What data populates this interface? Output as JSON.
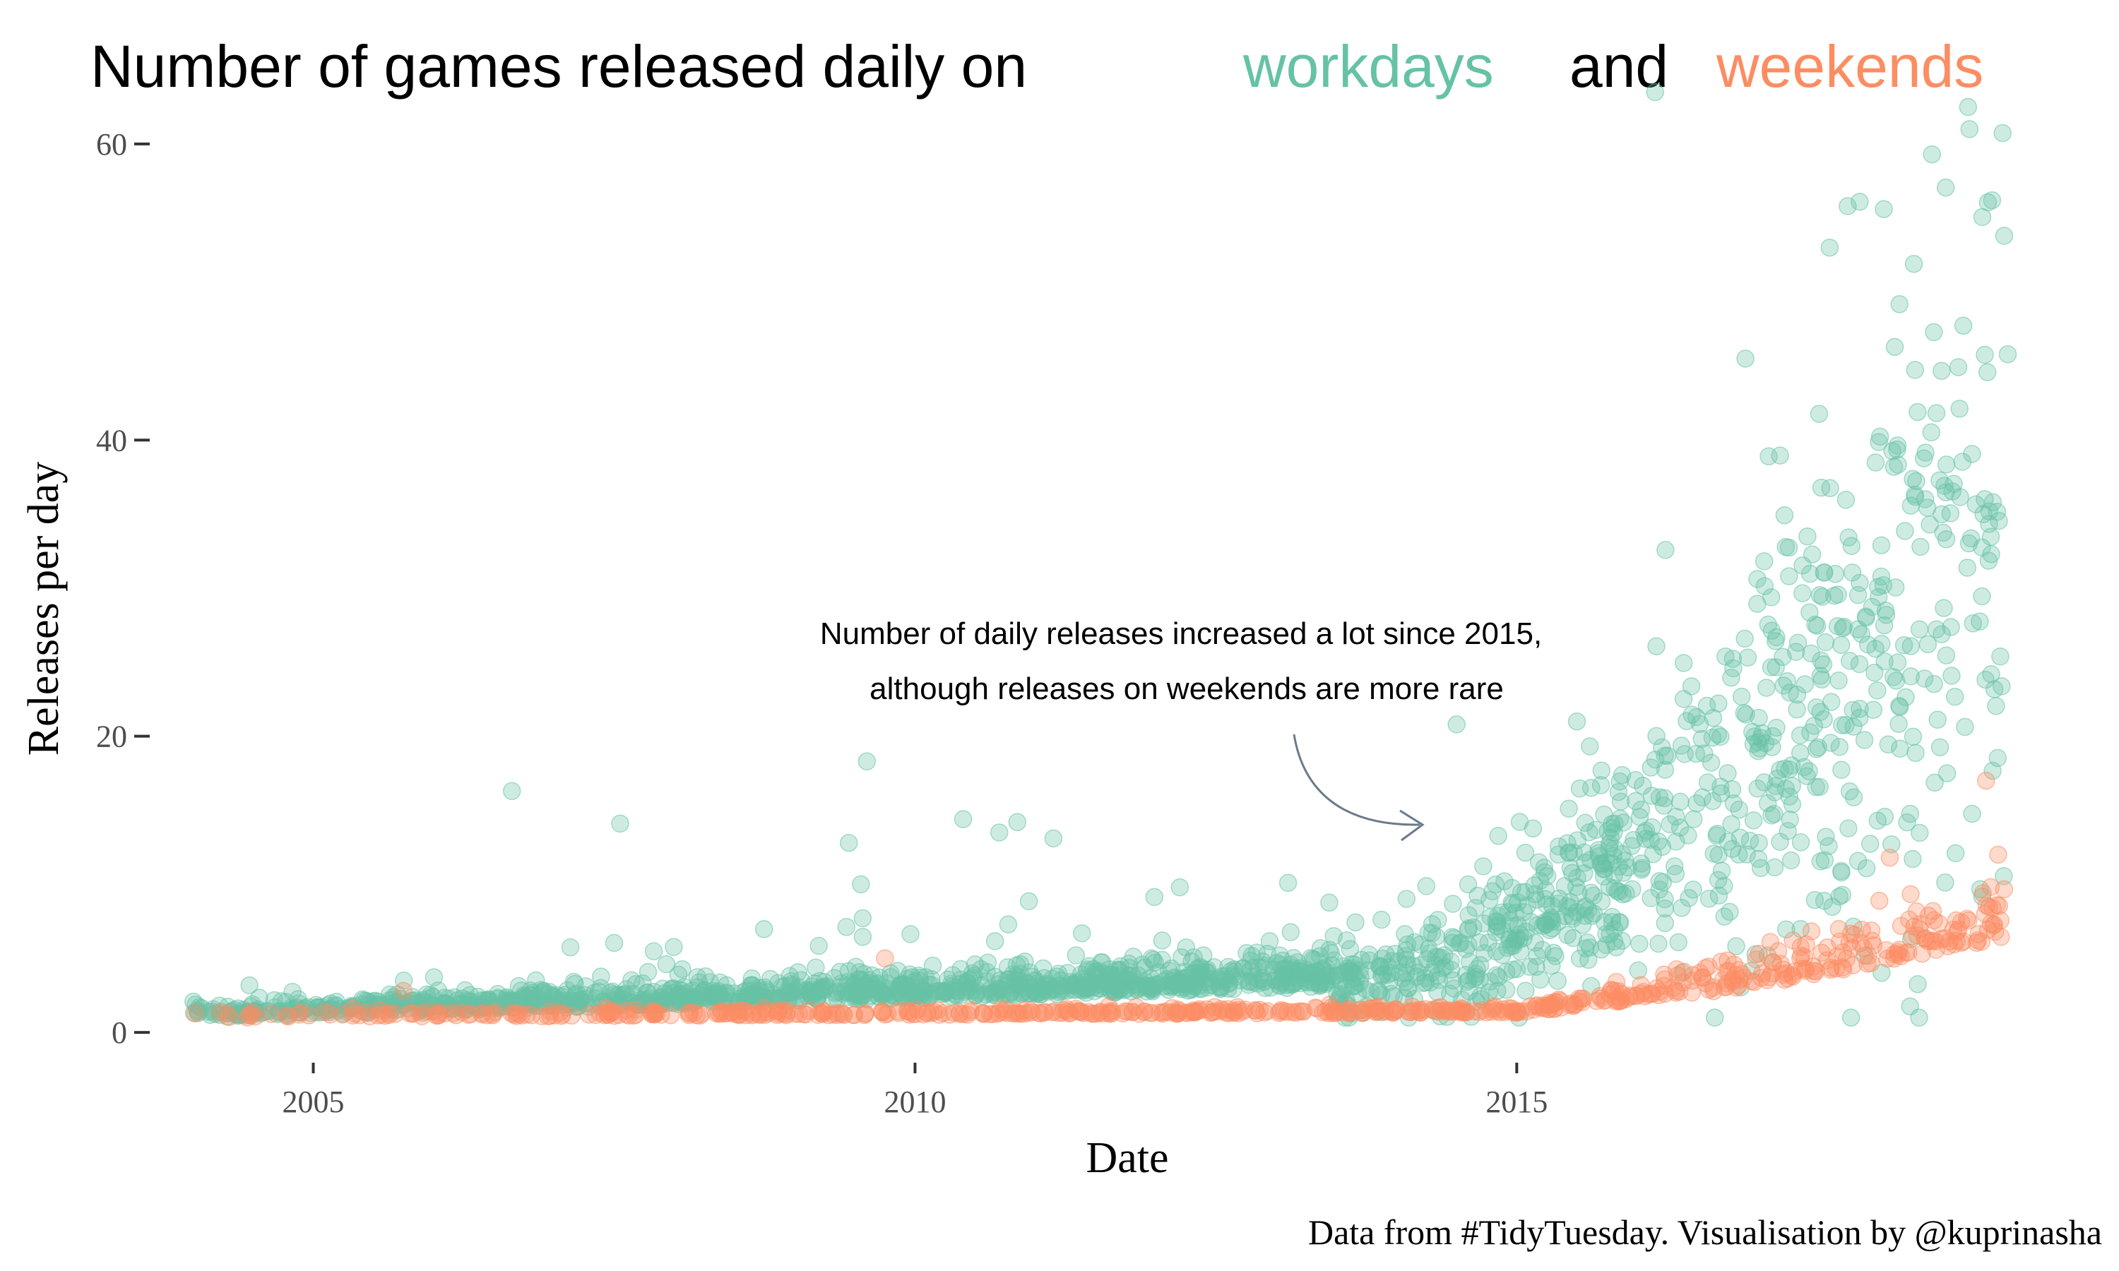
{
  "chart_data": {
    "type": "scatter",
    "title": {
      "prefix": "Number of games released daily on",
      "workdays_word": "workdays",
      "conjunction": "and",
      "weekends_word": "weekends"
    },
    "xlabel": "Date",
    "ylabel": "Releases per day",
    "caption": "Data from #TidyTuesday. Visualisation by @kuprinasha",
    "annotation": {
      "line1": "Number of daily releases increased a lot since 2015,",
      "line2": "although releases on weekends are more rare"
    },
    "xlim": [
      2003.6,
      2019.3
    ],
    "ylim": [
      -3,
      64
    ],
    "x_ticks": [
      2005,
      2010,
      2015
    ],
    "x_tick_labels": [
      "2005",
      "2010",
      "2015"
    ],
    "y_ticks": [
      0,
      20,
      40,
      60
    ],
    "y_tick_labels": [
      "0",
      "20",
      "40",
      "60"
    ],
    "grid": false,
    "legend": "encoded in title colors",
    "colors": {
      "workdays": "#66c2a5",
      "weekends": "#fc8d62",
      "annotation_arrow": "#6a7a8c"
    },
    "series": [
      {
        "name": "workdays",
        "highlighted_points": [
          {
            "x": 2006.65,
            "y": 16.3
          },
          {
            "x": 2007.55,
            "y": 14.1
          },
          {
            "x": 2009.45,
            "y": 12.8
          },
          {
            "x": 2009.6,
            "y": 18.3
          },
          {
            "x": 2009.55,
            "y": 10.0
          },
          {
            "x": 2010.4,
            "y": 14.4
          },
          {
            "x": 2010.7,
            "y": 13.5
          },
          {
            "x": 2010.85,
            "y": 14.2
          },
          {
            "x": 2011.15,
            "y": 13.1
          },
          {
            "x": 2012.2,
            "y": 9.8
          },
          {
            "x": 2013.1,
            "y": 10.1
          },
          {
            "x": 2014.5,
            "y": 20.8
          },
          {
            "x": 2015.5,
            "y": 21.0
          },
          {
            "x": 2016.15,
            "y": 63.5
          },
          {
            "x": 2016.9,
            "y": 45.5
          },
          {
            "x": 2017.6,
            "y": 53.0
          },
          {
            "x": 2017.75,
            "y": 55.8
          },
          {
            "x": 2017.85,
            "y": 56.1
          },
          {
            "x": 2018.05,
            "y": 55.6
          },
          {
            "x": 2018.3,
            "y": 51.9
          },
          {
            "x": 2018.45,
            "y": 59.3
          },
          {
            "x": 2018.75,
            "y": 62.5
          },
          {
            "x": 2018.95,
            "y": 56.2
          },
          {
            "x": 2019.05,
            "y": 53.8
          },
          {
            "x": 2019.08,
            "y": 45.8
          }
        ]
      },
      {
        "name": "weekends",
        "highlighted_points": [
          {
            "x": 2005.75,
            "y": 2.8
          },
          {
            "x": 2009.75,
            "y": 5.0
          },
          {
            "x": 2018.1,
            "y": 11.8
          },
          {
            "x": 2018.9,
            "y": 17.0
          },
          {
            "x": 2019.0,
            "y": 12.0
          }
        ]
      }
    ]
  }
}
